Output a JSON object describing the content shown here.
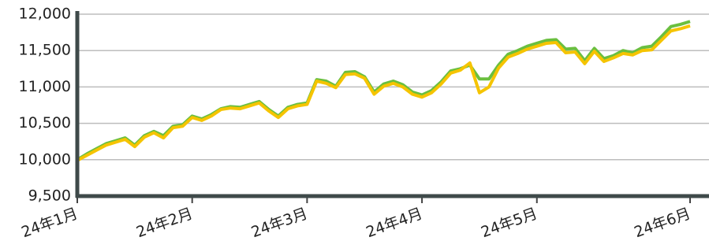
{
  "chart_data": {
    "type": "line",
    "categories": [
      "24年1月",
      null,
      null,
      null,
      null,
      null,
      null,
      null,
      null,
      null,
      null,
      null,
      "24年2月",
      null,
      null,
      null,
      null,
      null,
      null,
      null,
      null,
      null,
      null,
      null,
      "24年3月",
      null,
      null,
      null,
      null,
      null,
      null,
      null,
      null,
      null,
      null,
      null,
      "24年4月",
      null,
      null,
      null,
      null,
      null,
      null,
      null,
      null,
      null,
      null,
      null,
      "24年5月",
      null,
      null,
      null,
      null,
      null,
      null,
      null,
      null,
      null,
      null,
      null,
      null,
      null,
      null,
      null,
      "24年6月"
    ],
    "series": [
      {
        "color": "#6abf3f",
        "values": [
          10000,
          10080,
          10150,
          10220,
          10260,
          10300,
          10200,
          10330,
          10390,
          10330,
          10460,
          10480,
          10600,
          10560,
          10620,
          10700,
          10730,
          10720,
          10760,
          10800,
          10690,
          10600,
          10720,
          10760,
          10780,
          11100,
          11080,
          11010,
          11200,
          11210,
          11140,
          10930,
          11040,
          11080,
          11030,
          10930,
          10890,
          10950,
          11070,
          11220,
          11250,
          11300,
          11110,
          11110,
          11300,
          11450,
          11500,
          11560,
          11600,
          11640,
          11650,
          11520,
          11530,
          11360,
          11530,
          11390,
          11430,
          11500,
          11470,
          11540,
          11560,
          11690,
          11830,
          11860,
          11900
        ]
      },
      {
        "color": "#f5c400",
        "values": [
          9990,
          10060,
          10130,
          10200,
          10240,
          10280,
          10180,
          10310,
          10370,
          10300,
          10440,
          10460,
          10580,
          10540,
          10600,
          10690,
          10710,
          10700,
          10740,
          10780,
          10670,
          10580,
          10700,
          10740,
          10760,
          11080,
          11050,
          10990,
          11170,
          11180,
          11120,
          10900,
          11010,
          11050,
          11000,
          10900,
          10860,
          10920,
          11040,
          11190,
          11230,
          11330,
          10920,
          11000,
          11260,
          11410,
          11460,
          11520,
          11560,
          11600,
          11610,
          11470,
          11480,
          11320,
          11490,
          11350,
          11400,
          11460,
          11440,
          11500,
          11510,
          11640,
          11770,
          11800,
          11840
        ]
      }
    ],
    "ylim": [
      9500,
      12000
    ],
    "yticks": [
      {
        "value": 9500,
        "label": "9,500"
      },
      {
        "value": 10000,
        "label": "10,000"
      },
      {
        "value": 10500,
        "label": "10,500"
      },
      {
        "value": 11000,
        "label": "11,000"
      },
      {
        "value": 11500,
        "label": "11,500"
      },
      {
        "value": 12000,
        "label": "12,000"
      }
    ],
    "grid": true
  }
}
